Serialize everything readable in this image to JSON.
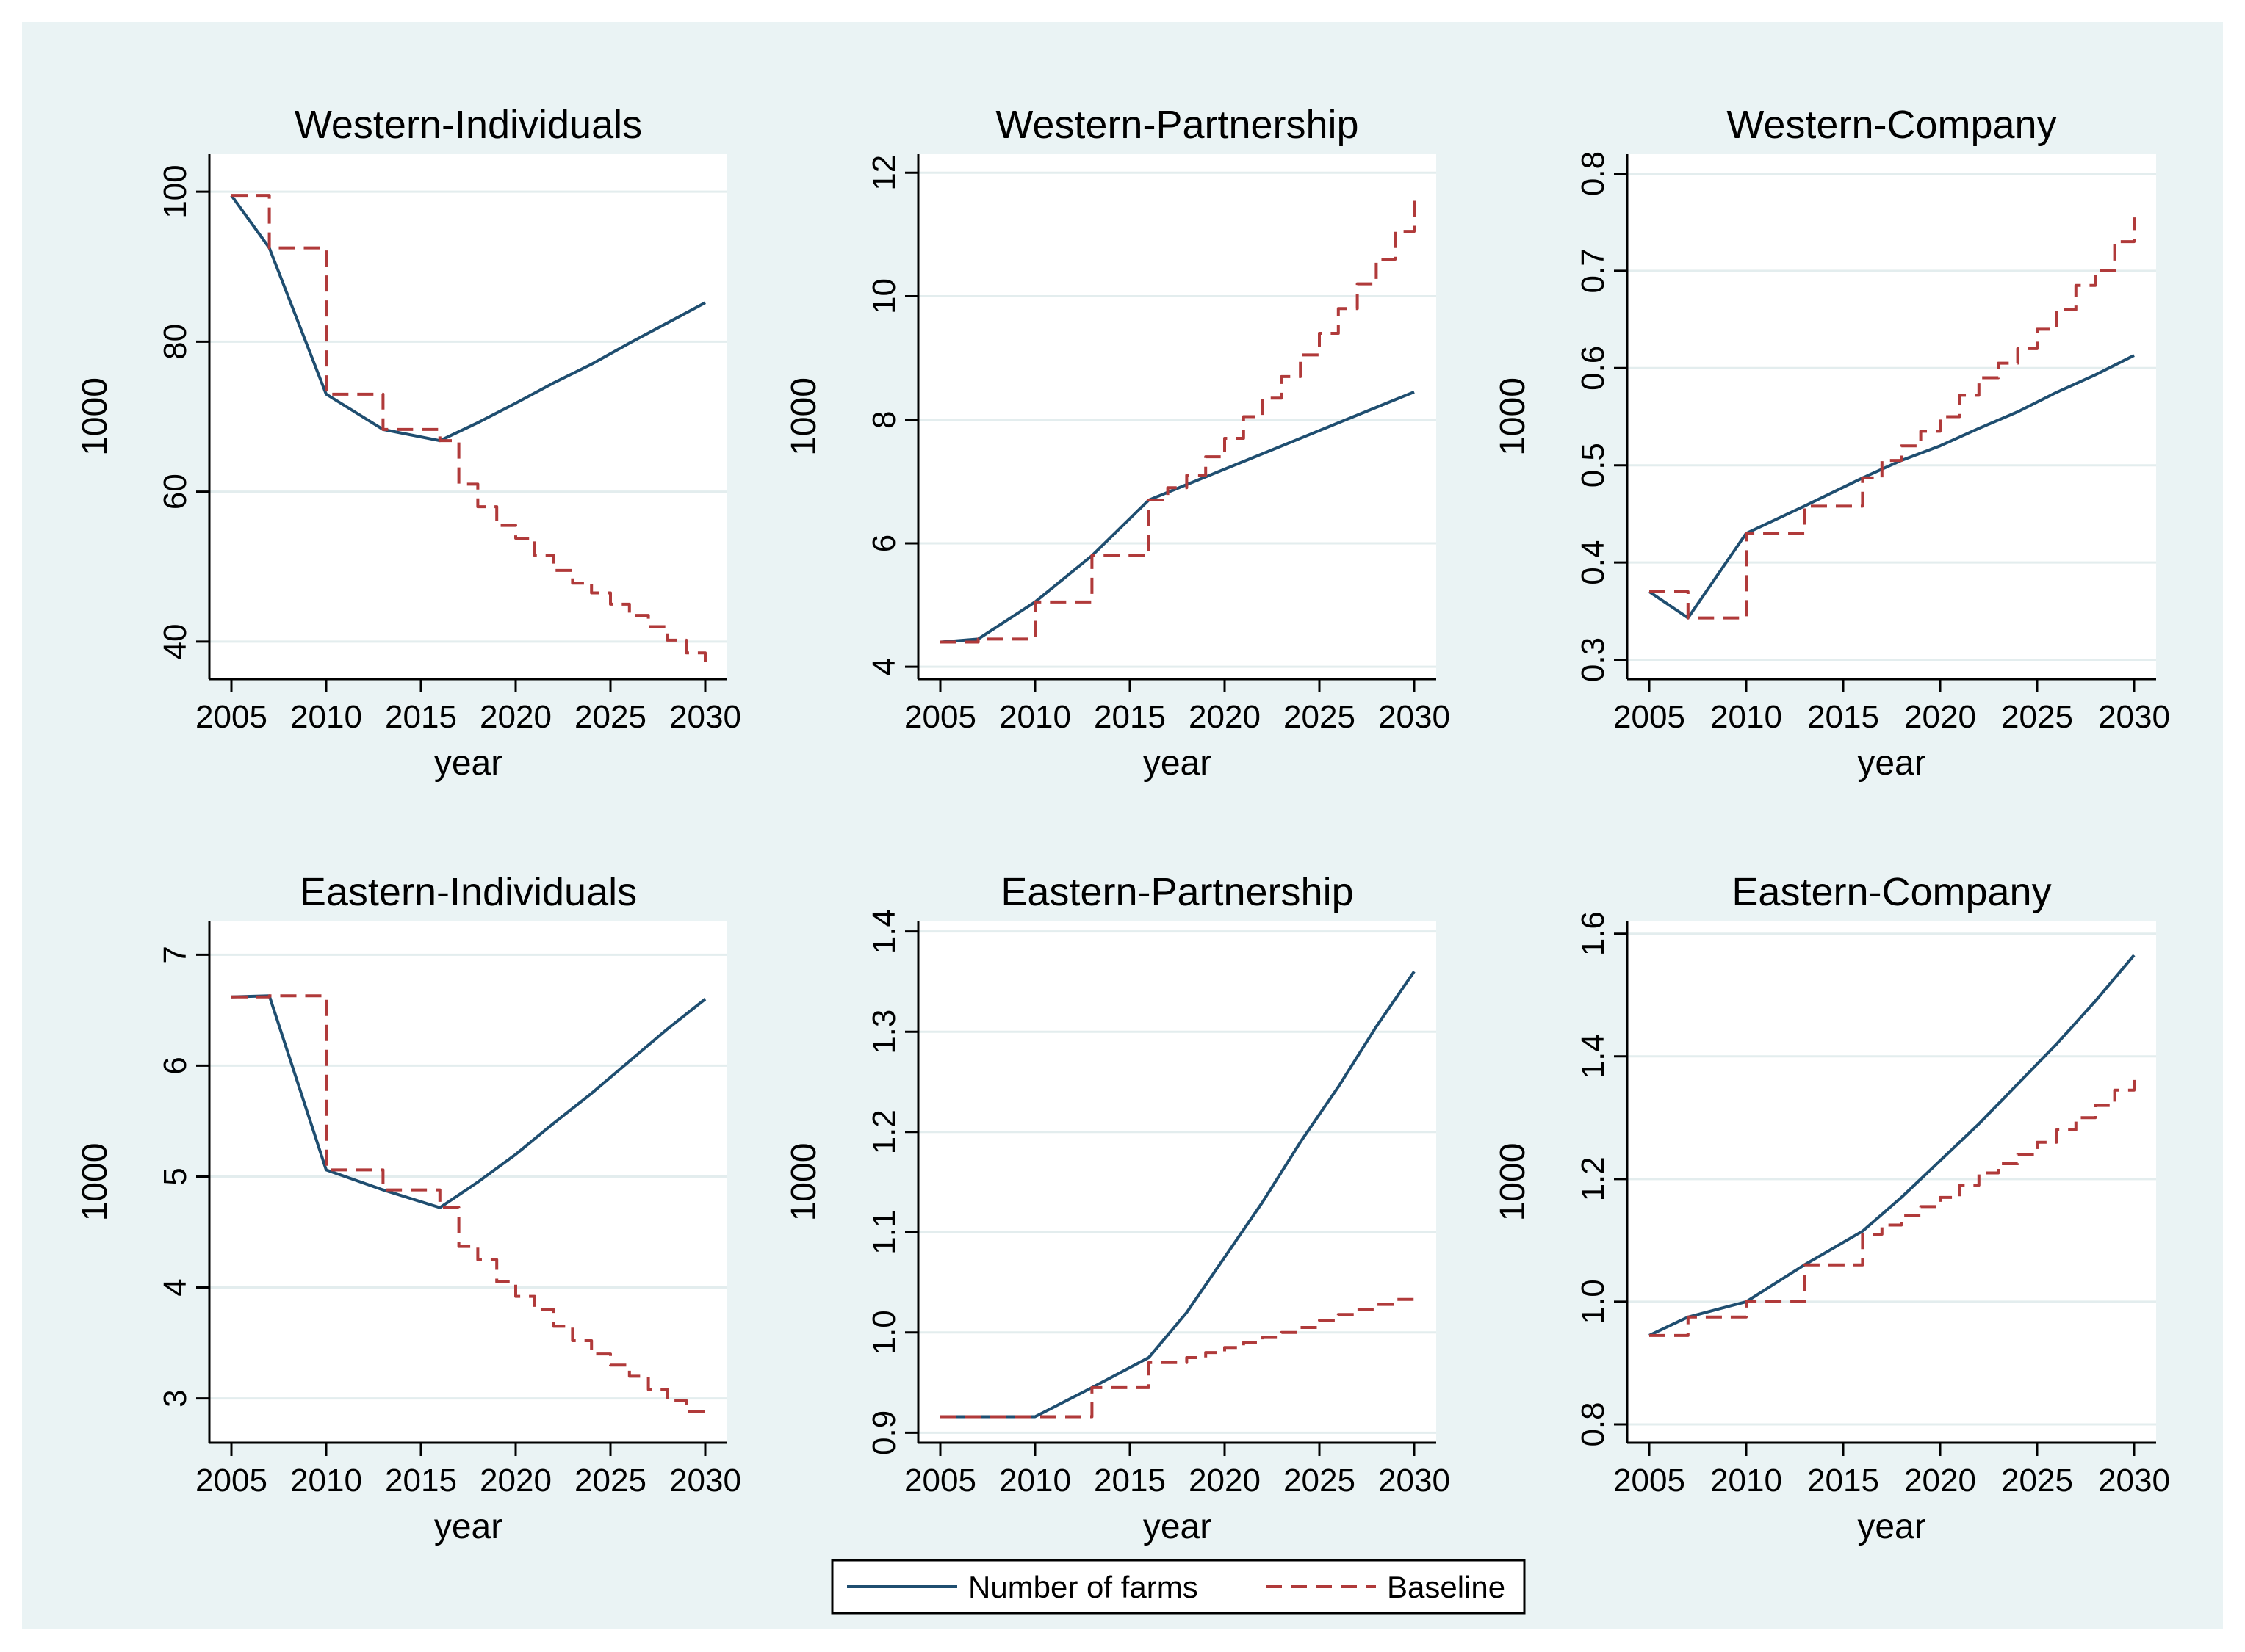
{
  "colors": {
    "background": "#eaf3f4",
    "plot_background": "#ffffff",
    "grid": "#e3edee",
    "series_farms": "#1f4e70",
    "series_baseline": "#b03a3a"
  },
  "legend": {
    "entries": [
      {
        "label": "Number of farms",
        "style": "solid"
      },
      {
        "label": "Baseline",
        "style": "dashed"
      }
    ],
    "placement": "bottom-center"
  },
  "chart_data": [
    {
      "type": "line",
      "title": "Western-Individuals",
      "xlabel": "year",
      "ylabel": "1000",
      "xlim": [
        2005,
        2030
      ],
      "ylim": [
        35,
        105
      ],
      "xticks": [
        "2005",
        "2010",
        "2015",
        "2020",
        "2025",
        "2030"
      ],
      "yticks": [
        "40",
        "60",
        "80",
        "100"
      ],
      "grid": true,
      "series": [
        {
          "name": "Number of farms",
          "x": [
            2005,
            2007,
            2010,
            2013,
            2016,
            2018,
            2020,
            2022,
            2024,
            2026,
            2028,
            2030
          ],
          "y": [
            99.5,
            92.5,
            73,
            68.3,
            66.8,
            69.2,
            71.8,
            74.5,
            77,
            79.8,
            82.5,
            85.2
          ]
        },
        {
          "name": "Baseline",
          "step": true,
          "x": [
            2005,
            2007,
            2010,
            2013,
            2016,
            2017,
            2018,
            2019,
            2020,
            2021,
            2022,
            2023,
            2024,
            2025,
            2026,
            2027,
            2028,
            2029,
            2030
          ],
          "y": [
            99.5,
            92.5,
            73,
            68.3,
            66.8,
            61,
            58,
            55.5,
            53.8,
            51.5,
            49.5,
            47.8,
            46.5,
            45,
            43.5,
            42,
            40.2,
            38.5,
            37
          ]
        }
      ]
    },
    {
      "type": "line",
      "title": "Western-Partnership",
      "xlabel": "year",
      "ylabel": "1000",
      "xlim": [
        2005,
        2030
      ],
      "ylim": [
        3.8,
        12.3
      ],
      "xticks": [
        "2005",
        "2010",
        "2015",
        "2020",
        "2025",
        "2030"
      ],
      "yticks": [
        "4",
        "6",
        "8",
        "10",
        "12"
      ],
      "grid": true,
      "series": [
        {
          "name": "Number of farms",
          "x": [
            2005,
            2007,
            2010,
            2013,
            2016,
            2018,
            2020,
            2022,
            2024,
            2026,
            2028,
            2030
          ],
          "y": [
            4.4,
            4.45,
            5.05,
            5.8,
            6.7,
            6.95,
            7.2,
            7.45,
            7.7,
            7.95,
            8.2,
            8.45
          ]
        },
        {
          "name": "Baseline",
          "step": true,
          "x": [
            2005,
            2007,
            2010,
            2013,
            2016,
            2017,
            2018,
            2019,
            2020,
            2021,
            2022,
            2023,
            2024,
            2025,
            2026,
            2027,
            2028,
            2029,
            2030
          ],
          "y": [
            4.4,
            4.45,
            5.05,
            5.8,
            6.7,
            6.9,
            7.1,
            7.4,
            7.7,
            8.05,
            8.35,
            8.7,
            9.05,
            9.4,
            9.8,
            10.2,
            10.6,
            11.05,
            11.55
          ]
        }
      ]
    },
    {
      "type": "line",
      "title": "Western-Company",
      "xlabel": "year",
      "ylabel": "1000",
      "xlim": [
        2005,
        2030
      ],
      "ylim": [
        0.28,
        0.82
      ],
      "xticks": [
        "2005",
        "2010",
        "2015",
        "2020",
        "2025",
        "2030"
      ],
      "yticks": [
        "0.3",
        "0.4",
        "0.5",
        "0.6",
        "0.7",
        "0.8"
      ],
      "grid": true,
      "series": [
        {
          "name": "Number of farms",
          "x": [
            2005,
            2007,
            2010,
            2013,
            2016,
            2018,
            2020,
            2022,
            2024,
            2026,
            2028,
            2030
          ],
          "y": [
            0.37,
            0.343,
            0.43,
            0.458,
            0.487,
            0.505,
            0.52,
            0.538,
            0.555,
            0.575,
            0.593,
            0.613
          ]
        },
        {
          "name": "Baseline",
          "step": true,
          "x": [
            2005,
            2007,
            2010,
            2013,
            2016,
            2017,
            2018,
            2019,
            2020,
            2021,
            2022,
            2023,
            2024,
            2025,
            2026,
            2027,
            2028,
            2029,
            2030
          ],
          "y": [
            0.37,
            0.343,
            0.43,
            0.458,
            0.487,
            0.505,
            0.52,
            0.535,
            0.55,
            0.572,
            0.59,
            0.605,
            0.62,
            0.64,
            0.66,
            0.685,
            0.7,
            0.73,
            0.755
          ]
        }
      ]
    },
    {
      "type": "line",
      "title": "Eastern-Individuals",
      "xlabel": "year",
      "ylabel": "1000",
      "xlim": [
        2005,
        2030
      ],
      "ylim": [
        2.6,
        7.3
      ],
      "xticks": [
        "2005",
        "2010",
        "2015",
        "2020",
        "2025",
        "2030"
      ],
      "yticks": [
        "3",
        "4",
        "5",
        "6",
        "7"
      ],
      "grid": true,
      "series": [
        {
          "name": "Number of farms",
          "x": [
            2005,
            2007,
            2010,
            2013,
            2016,
            2018,
            2020,
            2022,
            2024,
            2026,
            2028,
            2030
          ],
          "y": [
            6.62,
            6.63,
            5.06,
            4.88,
            4.72,
            4.95,
            5.2,
            5.48,
            5.75,
            6.04,
            6.33,
            6.6
          ]
        },
        {
          "name": "Baseline",
          "step": true,
          "x": [
            2005,
            2007,
            2010,
            2013,
            2016,
            2017,
            2018,
            2019,
            2020,
            2021,
            2022,
            2023,
            2024,
            2025,
            2026,
            2027,
            2028,
            2029,
            2030
          ],
          "y": [
            6.62,
            6.63,
            5.06,
            4.88,
            4.72,
            4.37,
            4.25,
            4.05,
            3.92,
            3.8,
            3.65,
            3.52,
            3.4,
            3.3,
            3.2,
            3.08,
            2.98,
            2.88,
            2.84
          ]
        }
      ]
    },
    {
      "type": "line",
      "title": "Eastern-Partnership",
      "xlabel": "year",
      "ylabel": "1000",
      "xlim": [
        2005,
        2030
      ],
      "ylim": [
        0.89,
        1.41
      ],
      "xticks": [
        "2005",
        "2010",
        "2015",
        "2020",
        "2025",
        "2030"
      ],
      "yticks": [
        "0.9",
        "1.0",
        "1.1",
        "1.2",
        "1.3",
        "1.4"
      ],
      "grid": true,
      "series": [
        {
          "name": "Number of farms",
          "x": [
            2005,
            2007,
            2010,
            2013,
            2016,
            2018,
            2020,
            2022,
            2024,
            2026,
            2028,
            2030
          ],
          "y": [
            0.916,
            0.916,
            0.916,
            0.945,
            0.975,
            1.02,
            1.075,
            1.13,
            1.19,
            1.245,
            1.305,
            1.36
          ]
        },
        {
          "name": "Baseline",
          "step": true,
          "x": [
            2005,
            2007,
            2010,
            2013,
            2016,
            2017,
            2018,
            2019,
            2020,
            2021,
            2022,
            2023,
            2024,
            2025,
            2026,
            2027,
            2028,
            2029,
            2030
          ],
          "y": [
            0.916,
            0.916,
            0.916,
            0.945,
            0.97,
            0.97,
            0.975,
            0.98,
            0.985,
            0.99,
            0.995,
            1.0,
            1.005,
            1.012,
            1.018,
            1.023,
            1.028,
            1.033,
            1.04
          ]
        }
      ]
    },
    {
      "type": "line",
      "title": "Eastern-Company",
      "xlabel": "year",
      "ylabel": "1000",
      "xlim": [
        2005,
        2030
      ],
      "ylim": [
        0.77,
        1.62
      ],
      "xticks": [
        "2005",
        "2010",
        "2015",
        "2020",
        "2025",
        "2030"
      ],
      "yticks": [
        "0.8",
        "1.0",
        "1.2",
        "1.4",
        "1.6"
      ],
      "grid": true,
      "series": [
        {
          "name": "Number of farms",
          "x": [
            2005,
            2007,
            2010,
            2013,
            2016,
            2018,
            2020,
            2022,
            2024,
            2026,
            2028,
            2030
          ],
          "y": [
            0.945,
            0.975,
            1.0,
            1.06,
            1.115,
            1.17,
            1.23,
            1.29,
            1.355,
            1.42,
            1.49,
            1.565
          ]
        },
        {
          "name": "Baseline",
          "step": true,
          "x": [
            2005,
            2007,
            2010,
            2013,
            2016,
            2017,
            2018,
            2019,
            2020,
            2021,
            2022,
            2023,
            2024,
            2025,
            2026,
            2027,
            2028,
            2029,
            2030
          ],
          "y": [
            0.945,
            0.975,
            1.0,
            1.06,
            1.11,
            1.125,
            1.14,
            1.155,
            1.17,
            1.19,
            1.21,
            1.225,
            1.24,
            1.26,
            1.28,
            1.3,
            1.32,
            1.345,
            1.37
          ]
        }
      ]
    }
  ]
}
